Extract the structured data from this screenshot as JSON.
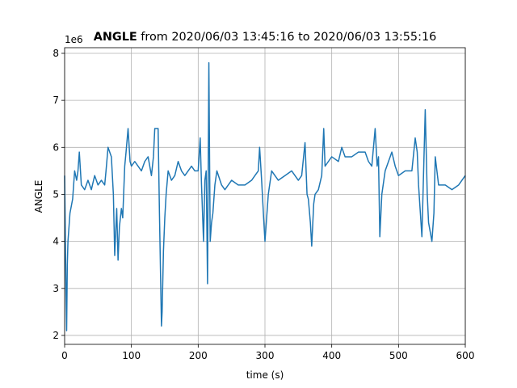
{
  "chart_data": {
    "type": "line",
    "title_bold": "ANGLE",
    "title": "from 2020/06/03 13:45:16 to 2020/06/03 13:55:16",
    "offset_text": "1e6",
    "xlabel": "time (s)",
    "ylabel": "ANGLE",
    "x": [
      0,
      2,
      3,
      4,
      5,
      8,
      12,
      15,
      18,
      20,
      22,
      25,
      30,
      35,
      40,
      45,
      50,
      55,
      60,
      62,
      65,
      70,
      73,
      75,
      78,
      80,
      82,
      85,
      87,
      90,
      92,
      95,
      98,
      100,
      105,
      110,
      115,
      120,
      125,
      130,
      133,
      135,
      140,
      142,
      145,
      146,
      148,
      150,
      152,
      155,
      160,
      165,
      170,
      175,
      180,
      185,
      190,
      195,
      200,
      203,
      205,
      208,
      210,
      212,
      214,
      216,
      218,
      220,
      222,
      225,
      228,
      235,
      240,
      250,
      260,
      270,
      280,
      285,
      290,
      292,
      295,
      298,
      300,
      305,
      310,
      320,
      330,
      340,
      350,
      355,
      360,
      363,
      365,
      368,
      370,
      373,
      375,
      380,
      385,
      388,
      390,
      395,
      400,
      410,
      415,
      420,
      430,
      440,
      450,
      455,
      460,
      465,
      468,
      470,
      472,
      475,
      480,
      485,
      490,
      495,
      500,
      510,
      520,
      525,
      528,
      530,
      535,
      540,
      543,
      545,
      550,
      553,
      555,
      560,
      570,
      580,
      590,
      600
    ],
    "values": [
      5.4,
      3.0,
      2.1,
      3.5,
      4.0,
      4.6,
      4.9,
      5.5,
      5.3,
      5.5,
      5.9,
      5.2,
      5.1,
      5.3,
      5.1,
      5.4,
      5.2,
      5.3,
      5.2,
      5.5,
      6.0,
      5.8,
      5.0,
      3.7,
      4.7,
      3.6,
      4.3,
      4.7,
      4.5,
      5.6,
      5.9,
      6.4,
      5.7,
      5.6,
      5.7,
      5.6,
      5.5,
      5.7,
      5.8,
      5.4,
      5.8,
      6.4,
      6.4,
      4.6,
      2.2,
      2.5,
      3.8,
      4.5,
      5.0,
      5.5,
      5.3,
      5.4,
      5.7,
      5.5,
      5.4,
      5.5,
      5.6,
      5.5,
      5.5,
      6.2,
      5.2,
      4.0,
      5.3,
      5.5,
      3.1,
      7.8,
      4.0,
      4.4,
      4.6,
      5.2,
      5.5,
      5.2,
      5.1,
      5.3,
      5.2,
      5.2,
      5.3,
      5.4,
      5.5,
      6.0,
      5.3,
      4.5,
      4.0,
      5.0,
      5.5,
      5.3,
      5.4,
      5.5,
      5.3,
      5.4,
      6.1,
      5.0,
      4.9,
      4.4,
      3.9,
      4.8,
      5.0,
      5.1,
      5.4,
      6.4,
      5.6,
      5.7,
      5.8,
      5.7,
      6.0,
      5.8,
      5.8,
      5.9,
      5.9,
      5.7,
      5.6,
      6.4,
      5.6,
      5.8,
      4.1,
      5.0,
      5.5,
      5.7,
      5.9,
      5.6,
      5.4,
      5.5,
      5.5,
      6.2,
      5.9,
      5.2,
      4.1,
      6.8,
      5.0,
      4.4,
      4.0,
      4.6,
      5.8,
      5.2,
      5.2,
      5.1,
      5.2,
      5.4
    ],
    "color": "#1f77b4",
    "xlim": [
      0,
      600
    ],
    "xticks": [
      0,
      100,
      200,
      300,
      400,
      500,
      600
    ],
    "ylim": [
      1.81,
      8.12
    ],
    "yticks": [
      2,
      3,
      4,
      5,
      6,
      7,
      8
    ],
    "grid": true
  }
}
